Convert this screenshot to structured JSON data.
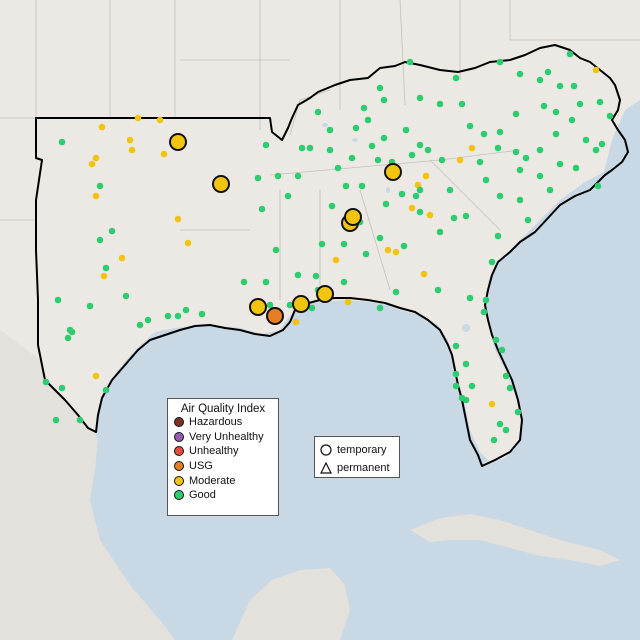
{
  "legend": {
    "title": "Air Quality Index",
    "categories": [
      {
        "label": "Hazardous",
        "color": "#7e2f25"
      },
      {
        "label": "Very Unhealthy",
        "color": "#9b59b6"
      },
      {
        "label": "Unhealthy",
        "color": "#e74c3c"
      },
      {
        "label": "USG",
        "color": "#e67e22"
      },
      {
        "label": "Moderate",
        "color": "#f1c40f"
      },
      {
        "label": "Good",
        "color": "#2ecc71"
      }
    ]
  },
  "monitor_types": {
    "temporary": "temporary",
    "permanent": "permanent"
  },
  "highlighted_monitors": [
    {
      "category": "Moderate"
    },
    {
      "category": "Moderate"
    },
    {
      "category": "Moderate"
    },
    {
      "category": "Moderate"
    },
    {
      "category": "Moderate"
    },
    {
      "category": "Moderate"
    },
    {
      "category": "Moderate"
    },
    {
      "category": "Moderate"
    },
    {
      "category": "USG"
    }
  ],
  "colors": {
    "water": "#c8d8e4",
    "land": "#ece8e4",
    "region_outline": "#000000",
    "border": "#b8b4b0"
  }
}
